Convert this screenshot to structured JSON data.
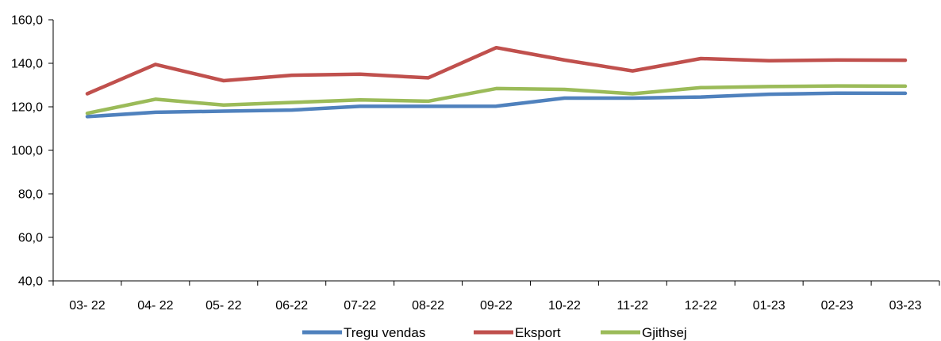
{
  "chart_data": {
    "type": "line",
    "title": "",
    "xlabel": "",
    "ylabel": "",
    "categories": [
      "03- 22",
      "04- 22",
      "05- 22",
      "06-22",
      "07-22",
      "08-22",
      "09-22",
      "10-22",
      "11-22",
      "12-22",
      "01-23",
      "02-23",
      "03-23"
    ],
    "ylim": [
      40,
      160
    ],
    "yticks": [
      "40,0",
      "60,0",
      "80,0",
      "100,0",
      "120,0",
      "140,0",
      "160,0"
    ],
    "ytick_values": [
      40,
      60,
      80,
      100,
      120,
      140,
      160
    ],
    "grid": false,
    "legend_position": "bottom",
    "series": [
      {
        "name": "Tregu vendas",
        "color": "#4f81bd",
        "values": [
          115.5,
          117.5,
          118.0,
          118.5,
          120.2,
          120.2,
          120.3,
          124.0,
          124.0,
          124.5,
          125.8,
          126.3,
          126.2
        ]
      },
      {
        "name": "Eksport",
        "color": "#c0504d",
        "values": [
          126.0,
          139.5,
          132.0,
          134.5,
          135.0,
          133.3,
          147.2,
          141.5,
          136.5,
          142.2,
          141.2,
          141.5,
          141.4
        ]
      },
      {
        "name": "Gjithsej",
        "color": "#9bbb59",
        "values": [
          117.0,
          123.5,
          120.8,
          122.0,
          123.2,
          122.6,
          128.4,
          128.0,
          126.0,
          128.8,
          129.3,
          129.6,
          129.5
        ]
      }
    ]
  }
}
